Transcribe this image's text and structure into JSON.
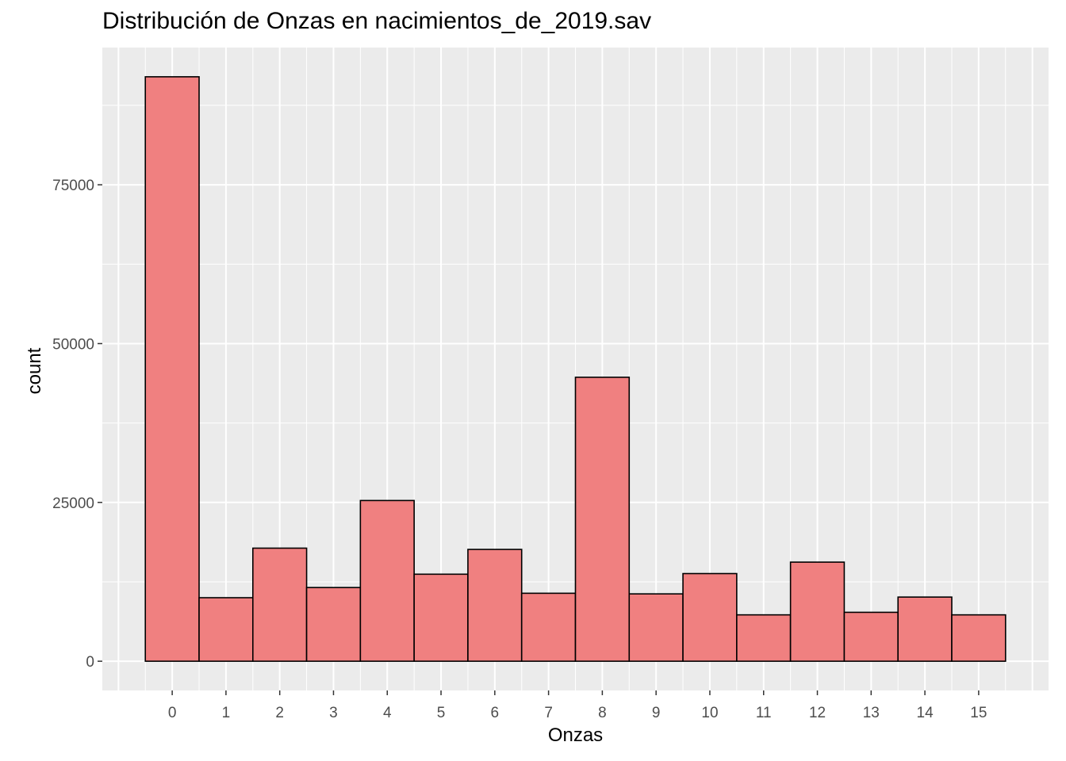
{
  "chart_data": {
    "type": "bar",
    "title": "Distribución de Onzas en nacimientos_de_2019.sav",
    "xlabel": "Onzas",
    "ylabel": "count",
    "categories": [
      "0",
      "1",
      "2",
      "3",
      "4",
      "5",
      "6",
      "7",
      "8",
      "9",
      "10",
      "11",
      "12",
      "13",
      "14",
      "15"
    ],
    "values": [
      92000,
      10000,
      17800,
      11600,
      25300,
      13700,
      17600,
      10700,
      44700,
      10600,
      13800,
      7300,
      15600,
      7700,
      10100,
      7300
    ],
    "y_ticks": [
      0,
      25000,
      50000,
      75000
    ],
    "y_tick_labels": [
      "0",
      "25000",
      "50000",
      "75000"
    ],
    "ylim": [
      -4600,
      96600
    ],
    "xlim": [
      -1.3,
      16.3
    ],
    "grid": true,
    "bar_fill": "#F08080",
    "bar_stroke": "#000000",
    "panel_bg": "#EBEBEB",
    "grid_color": "#FFFFFF"
  }
}
